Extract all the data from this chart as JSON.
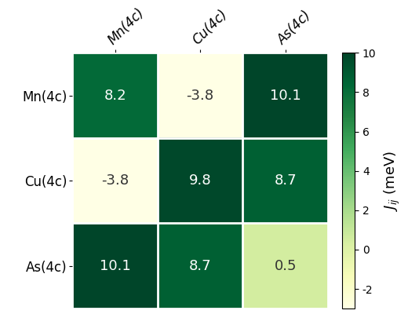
{
  "matrix": [
    [
      8.2,
      -3.8,
      10.1
    ],
    [
      -3.8,
      9.8,
      8.7
    ],
    [
      10.1,
      8.7,
      0.5
    ]
  ],
  "labels": [
    "Mn(4c)",
    "Cu(4c)",
    "As(4c)"
  ],
  "vmin": -3,
  "vmax": 10,
  "cbar_label": "$J_{ij}$ (meV)",
  "cbar_ticks": [
    -2,
    0,
    2,
    4,
    6,
    8,
    10
  ],
  "colormap": "YlGn",
  "font_size_labels": 12,
  "font_size_values": 13,
  "font_size_cbar": 13
}
